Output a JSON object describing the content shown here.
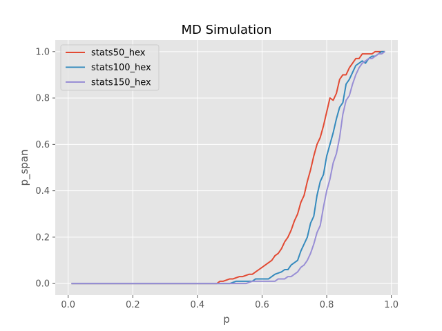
{
  "chart_data": {
    "type": "line",
    "title": "MD Simulation",
    "xlabel": "p",
    "ylabel": "p_span",
    "xlim": [
      -0.04,
      1.02
    ],
    "ylim": [
      -0.05,
      1.05
    ],
    "xticks": [
      0.0,
      0.2,
      0.4,
      0.6,
      0.8,
      1.0
    ],
    "xtick_labels": [
      "0.0",
      "0.2",
      "0.4",
      "0.6",
      "0.8",
      "1.0"
    ],
    "yticks": [
      0.0,
      0.2,
      0.4,
      0.6,
      0.8,
      1.0
    ],
    "ytick_labels": [
      "0.0",
      "0.2",
      "0.4",
      "0.6",
      "0.8",
      "1.0"
    ],
    "grid": true,
    "legend_position": "top-left",
    "background": "#e5e5e5",
    "series": [
      {
        "name": "stats50_hex",
        "color": "#e24a33",
        "x": [
          0.01,
          0.46,
          0.47,
          0.48,
          0.5,
          0.51,
          0.53,
          0.54,
          0.56,
          0.57,
          0.58,
          0.59,
          0.6,
          0.61,
          0.62,
          0.63,
          0.64,
          0.65,
          0.66,
          0.67,
          0.68,
          0.69,
          0.7,
          0.71,
          0.72,
          0.73,
          0.74,
          0.75,
          0.76,
          0.77,
          0.78,
          0.79,
          0.8,
          0.81,
          0.82,
          0.83,
          0.84,
          0.85,
          0.86,
          0.87,
          0.88,
          0.89,
          0.9,
          0.91,
          0.92,
          0.93,
          0.94,
          0.95,
          0.96,
          0.97,
          0.98
        ],
        "y": [
          0.0,
          0.0,
          0.01,
          0.01,
          0.02,
          0.02,
          0.03,
          0.03,
          0.04,
          0.04,
          0.05,
          0.06,
          0.07,
          0.08,
          0.09,
          0.1,
          0.12,
          0.13,
          0.15,
          0.18,
          0.2,
          0.23,
          0.27,
          0.3,
          0.35,
          0.38,
          0.44,
          0.49,
          0.55,
          0.6,
          0.63,
          0.68,
          0.74,
          0.8,
          0.79,
          0.82,
          0.88,
          0.9,
          0.9,
          0.93,
          0.95,
          0.97,
          0.97,
          0.99,
          0.99,
          0.99,
          0.99,
          1.0,
          1.0,
          1.0,
          1.0
        ]
      },
      {
        "name": "stats100_hex",
        "color": "#348abd",
        "x": [
          0.01,
          0.5,
          0.52,
          0.55,
          0.57,
          0.58,
          0.6,
          0.62,
          0.63,
          0.64,
          0.66,
          0.67,
          0.68,
          0.69,
          0.7,
          0.71,
          0.72,
          0.73,
          0.74,
          0.75,
          0.76,
          0.77,
          0.78,
          0.79,
          0.8,
          0.81,
          0.82,
          0.83,
          0.84,
          0.85,
          0.86,
          0.87,
          0.88,
          0.89,
          0.9,
          0.91,
          0.92,
          0.93,
          0.94,
          0.95,
          0.96,
          0.97,
          0.98
        ],
        "y": [
          0.0,
          0.0,
          0.01,
          0.01,
          0.01,
          0.02,
          0.02,
          0.02,
          0.03,
          0.04,
          0.05,
          0.06,
          0.06,
          0.08,
          0.09,
          0.1,
          0.14,
          0.17,
          0.2,
          0.26,
          0.29,
          0.38,
          0.44,
          0.47,
          0.55,
          0.6,
          0.65,
          0.71,
          0.76,
          0.78,
          0.86,
          0.88,
          0.91,
          0.94,
          0.95,
          0.96,
          0.95,
          0.97,
          0.98,
          0.98,
          0.99,
          1.0,
          1.0
        ]
      },
      {
        "name": "stats150_hex",
        "color": "#988ed5",
        "x": [
          0.01,
          0.55,
          0.57,
          0.6,
          0.62,
          0.64,
          0.65,
          0.66,
          0.67,
          0.68,
          0.69,
          0.7,
          0.71,
          0.72,
          0.73,
          0.74,
          0.75,
          0.76,
          0.77,
          0.78,
          0.79,
          0.8,
          0.81,
          0.82,
          0.83,
          0.84,
          0.85,
          0.86,
          0.87,
          0.88,
          0.89,
          0.9,
          0.91,
          0.92,
          0.93,
          0.94,
          0.95,
          0.96,
          0.97,
          0.98
        ],
        "y": [
          0.0,
          0.0,
          0.01,
          0.01,
          0.01,
          0.01,
          0.02,
          0.02,
          0.02,
          0.03,
          0.03,
          0.04,
          0.05,
          0.07,
          0.08,
          0.1,
          0.13,
          0.17,
          0.22,
          0.25,
          0.33,
          0.4,
          0.45,
          0.52,
          0.56,
          0.63,
          0.73,
          0.79,
          0.81,
          0.86,
          0.9,
          0.93,
          0.95,
          0.96,
          0.97,
          0.97,
          0.98,
          0.99,
          0.99,
          1.0
        ]
      }
    ]
  }
}
